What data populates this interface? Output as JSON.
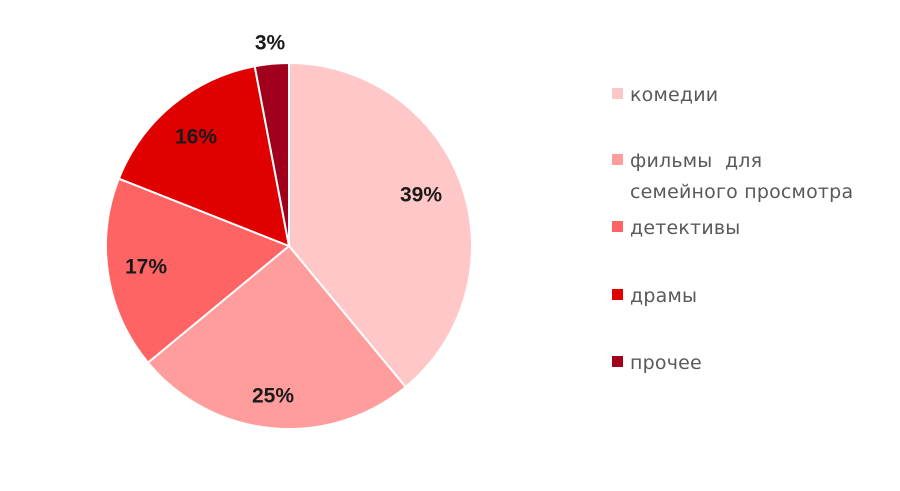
{
  "chart_data": {
    "type": "pie",
    "title": "",
    "categories": [
      "комедии",
      "фильмы для семейного просмотра",
      "детективы",
      "драмы",
      "прочее"
    ],
    "values": [
      39,
      25,
      17,
      16,
      3
    ],
    "labels": [
      "39%",
      "25%",
      "17%",
      "16%",
      "3%"
    ],
    "colors": [
      "#ffc7c7",
      "#ff9c9c",
      "#ff6464",
      "#e00000",
      "#a0001c"
    ],
    "start_angle": "12 o'clock",
    "direction": "clockwise",
    "legend_position": "right"
  },
  "legend": {
    "items": [
      {
        "label": "комедии",
        "color": "#ffc7c7"
      },
      {
        "label_line1": "фильмы  для",
        "label_line2": "семейного просмотра",
        "color": "#ff9c9c"
      },
      {
        "label": "детективы",
        "color": "#ff6464"
      },
      {
        "label": "драмы",
        "color": "#e00000"
      },
      {
        "label": "прочее",
        "color": "#a0001c"
      }
    ]
  }
}
